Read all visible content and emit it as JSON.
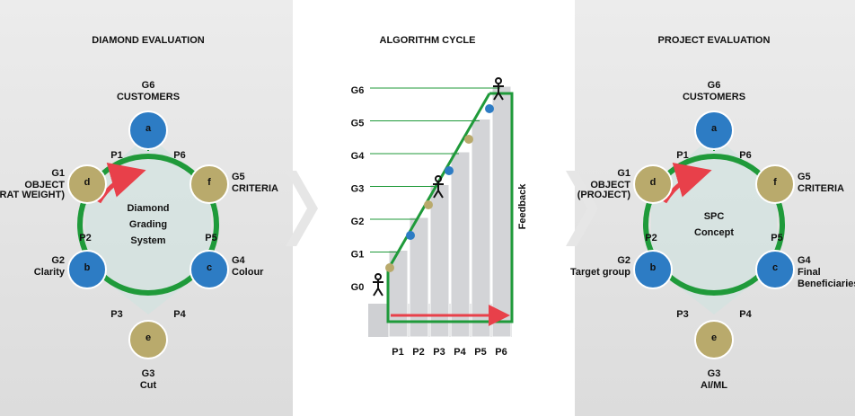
{
  "panels": [
    {
      "title": "DIAMOND EVALUATION",
      "center": [
        "Diamond",
        "Grading",
        "System"
      ],
      "nodes": [
        {
          "code": "G6",
          "lines": [
            "CUSTOMERS"
          ],
          "letter": "a"
        },
        {
          "code": "G1",
          "lines": [
            "OBJECT"
          ],
          "note": "(CARAT WEIGHT)",
          "letter": "d"
        },
        {
          "code": "G5",
          "lines": [
            "CRITERIA"
          ],
          "letter": "f"
        },
        {
          "code": "G2",
          "lines": [
            "Clarity"
          ],
          "letter": "b"
        },
        {
          "code": "G4",
          "lines": [
            "Colour"
          ],
          "letter": "c"
        },
        {
          "code": "G3",
          "lines": [
            "Cut"
          ],
          "letter": "e"
        }
      ],
      "phases": [
        "P1",
        "P6",
        "P2",
        "P5",
        "P3",
        "P4"
      ]
    },
    {
      "title": "PROJECT EVALUATION",
      "center": [
        "SPC",
        "Concept"
      ],
      "nodes": [
        {
          "code": "G6",
          "lines": [
            "CUSTOMERS"
          ],
          "letter": "a"
        },
        {
          "code": "G1",
          "lines": [
            "OBJECT"
          ],
          "note": "(PROJECT)",
          "letter": "d"
        },
        {
          "code": "G5",
          "lines": [
            "CRITERIA"
          ],
          "letter": "f"
        },
        {
          "code": "G2",
          "lines": [
            "Target group"
          ],
          "letter": "b"
        },
        {
          "code": "G4",
          "lines": [
            "Final",
            "Beneficiaries"
          ],
          "letter": "c"
        },
        {
          "code": "G3",
          "lines": [
            "AI/ML"
          ],
          "letter": "e"
        }
      ],
      "phases": [
        "P1",
        "P6",
        "P2",
        "P5",
        "P3",
        "P4"
      ]
    }
  ],
  "cycle": {
    "title": "ALGORITHM CYCLE",
    "levels": [
      "G0",
      "G1",
      "G2",
      "G3",
      "G4",
      "G5",
      "G6"
    ],
    "steps": [
      "P1",
      "P2",
      "P3",
      "P4",
      "P5",
      "P6"
    ],
    "feedback": "Feedback"
  }
}
